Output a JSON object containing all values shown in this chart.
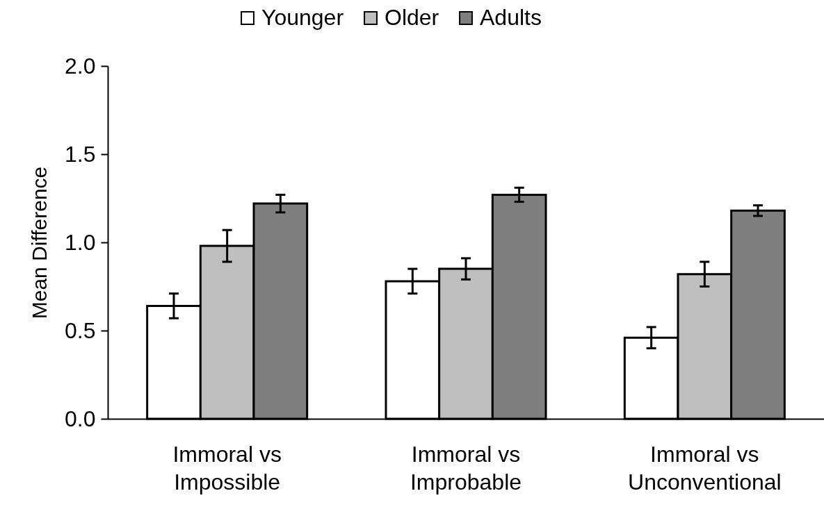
{
  "chart_data": {
    "type": "bar",
    "ylabel": "Mean Difference",
    "categories": [
      "Immoral vs\nImpossible",
      "Immoral vs\nImprobable",
      "Immoral vs\nUnconventional"
    ],
    "series": [
      {
        "name": "Younger",
        "color": "#ffffff",
        "values": [
          0.64,
          0.78,
          0.46
        ],
        "errors": [
          0.07,
          0.07,
          0.06
        ]
      },
      {
        "name": "Older",
        "color": "#bfbfbf",
        "values": [
          0.98,
          0.85,
          0.82
        ],
        "errors": [
          0.09,
          0.06,
          0.07
        ]
      },
      {
        "name": "Adults",
        "color": "#7f7f7f",
        "values": [
          1.22,
          1.27,
          1.18
        ],
        "errors": [
          0.05,
          0.04,
          0.03
        ]
      }
    ],
    "ylim": [
      0,
      2
    ],
    "yticks": [
      {
        "value": 0,
        "label": "0.0"
      },
      {
        "value": 0.5,
        "label": "0.5"
      },
      {
        "value": 1,
        "label": "1.0"
      },
      {
        "value": 1.5,
        "label": "1.5"
      },
      {
        "value": 2,
        "label": "2.0"
      }
    ],
    "grid": false,
    "legend": "top"
  }
}
